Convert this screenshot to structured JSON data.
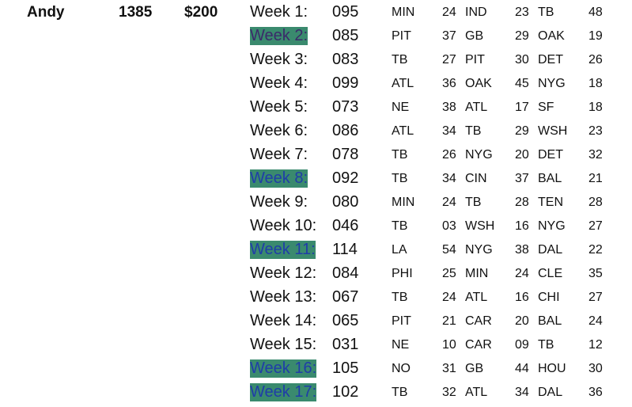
{
  "player": {
    "name": "Andy",
    "total": "1385",
    "winnings": "$200"
  },
  "weeks": [
    {
      "week": "Week 1:",
      "points": "095",
      "g1_team": "MIN",
      "g1_score": "24",
      "g2_team": "IND",
      "g2_score": "23",
      "g3_team": "TB",
      "g3_score": "48",
      "highlighted": false
    },
    {
      "week": "Week 2:",
      "points": "085",
      "g1_team": "PIT",
      "g1_score": "37",
      "g2_team": "GB",
      "g2_score": "29",
      "g3_team": "OAK",
      "g3_score": "19",
      "highlighted": true
    },
    {
      "week": "Week 3:",
      "points": "083",
      "g1_team": "TB",
      "g1_score": "27",
      "g2_team": "PIT",
      "g2_score": "30",
      "g3_team": "DET",
      "g3_score": "26",
      "highlighted": false
    },
    {
      "week": "Week 4:",
      "points": "099",
      "g1_team": "ATL",
      "g1_score": "36",
      "g2_team": "OAK",
      "g2_score": "45",
      "g3_team": "NYG",
      "g3_score": "18",
      "highlighted": false
    },
    {
      "week": "Week 5:",
      "points": "073",
      "g1_team": "NE",
      "g1_score": "38",
      "g2_team": "ATL",
      "g2_score": "17",
      "g3_team": "SF",
      "g3_score": "18",
      "highlighted": false
    },
    {
      "week": "Week 6:",
      "points": "086",
      "g1_team": "ATL",
      "g1_score": "34",
      "g2_team": "TB",
      "g2_score": "29",
      "g3_team": "WSH",
      "g3_score": "23",
      "highlighted": false
    },
    {
      "week": "Week 7:",
      "points": "078",
      "g1_team": "TB",
      "g1_score": "26",
      "g2_team": "NYG",
      "g2_score": "20",
      "g3_team": "DET",
      "g3_score": "32",
      "highlighted": false
    },
    {
      "week": "Week 8:",
      "points": "092",
      "g1_team": "TB",
      "g1_score": "34",
      "g2_team": "CIN",
      "g2_score": "37",
      "g3_team": "BAL",
      "g3_score": "21",
      "highlighted": true
    },
    {
      "week": "Week 9:",
      "points": "080",
      "g1_team": "MIN",
      "g1_score": "24",
      "g2_team": "TB",
      "g2_score": "28",
      "g3_team": "TEN",
      "g3_score": "28",
      "highlighted": false
    },
    {
      "week": "Week 10:",
      "points": "046",
      "g1_team": "TB",
      "g1_score": "03",
      "g2_team": "WSH",
      "g2_score": "16",
      "g3_team": "NYG",
      "g3_score": "27",
      "highlighted": false
    },
    {
      "week": "Week 11:",
      "points": "114",
      "g1_team": "LA",
      "g1_score": "54",
      "g2_team": "NYG",
      "g2_score": "38",
      "g3_team": "DAL",
      "g3_score": "22",
      "highlighted": true
    },
    {
      "week": "Week 12:",
      "points": "084",
      "g1_team": "PHI",
      "g1_score": "25",
      "g2_team": "MIN",
      "g2_score": "24",
      "g3_team": "CLE",
      "g3_score": "35",
      "highlighted": false
    },
    {
      "week": "Week 13:",
      "points": "067",
      "g1_team": "TB",
      "g1_score": "24",
      "g2_team": "ATL",
      "g2_score": "16",
      "g3_team": "CHI",
      "g3_score": "27",
      "highlighted": false
    },
    {
      "week": "Week 14:",
      "points": "065",
      "g1_team": "PIT",
      "g1_score": "21",
      "g2_team": "CAR",
      "g2_score": "20",
      "g3_team": "BAL",
      "g3_score": "24",
      "highlighted": false
    },
    {
      "week": "Week 15:",
      "points": "031",
      "g1_team": "NE",
      "g1_score": "10",
      "g2_team": "CAR",
      "g2_score": "09",
      "g3_team": "TB",
      "g3_score": "12",
      "highlighted": false
    },
    {
      "week": "Week 16:",
      "points": "105",
      "g1_team": "NO",
      "g1_score": "31",
      "g2_team": "GB",
      "g2_score": "44",
      "g3_team": "HOU",
      "g3_score": "30",
      "highlighted": true
    },
    {
      "week": "Week 17:",
      "points": "102",
      "g1_team": "TB",
      "g1_score": "32",
      "g2_team": "ATL",
      "g2_score": "34",
      "g3_team": "DAL",
      "g3_score": "36",
      "highlighted": true
    }
  ],
  "colors": {
    "highlight_bg": "#3a8a6e",
    "highlight_text": "#1f3da8",
    "text": "#111111"
  }
}
